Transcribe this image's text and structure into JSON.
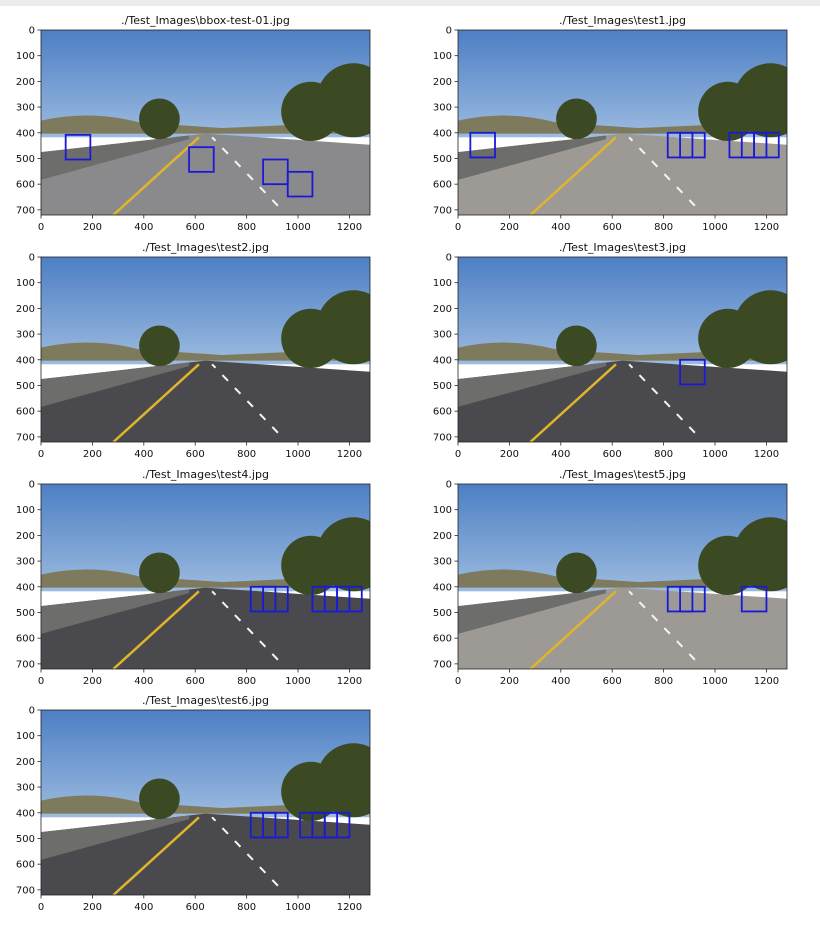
{
  "colors": {
    "box": "#1a1ad6",
    "axis": "#222222",
    "sky": "#5d8ccc",
    "road": "#4a4a4e",
    "lane_yellow": "#e0b52c"
  },
  "chart_data": [
    {
      "type": "image",
      "title": "./Test_Images\\bbox-test-01.jpg",
      "xlim": [
        0,
        1280
      ],
      "ylim": [
        720,
        0
      ],
      "xticks": [
        0,
        200,
        400,
        600,
        800,
        1000,
        1200
      ],
      "yticks": [
        0,
        100,
        200,
        300,
        400,
        500,
        600,
        700
      ],
      "scene": "freeway",
      "boxes": [
        {
          "x0": 96,
          "y0": 408,
          "x1": 192,
          "y1": 504
        },
        {
          "x0": 576,
          "y0": 456,
          "x1": 672,
          "y1": 552
        },
        {
          "x0": 864,
          "y0": 504,
          "x1": 960,
          "y1": 600
        },
        {
          "x0": 960,
          "y0": 552,
          "x1": 1056,
          "y1": 648
        }
      ]
    },
    {
      "type": "image",
      "title": "./Test_Images\\test1.jpg",
      "xlim": [
        0,
        1280
      ],
      "ylim": [
        720,
        0
      ],
      "xticks": [
        0,
        200,
        400,
        600,
        800,
        1000,
        1200
      ],
      "yticks": [
        0,
        100,
        200,
        300,
        400,
        500,
        600,
        700
      ],
      "scene": "bright",
      "boxes": [
        {
          "x0": 48,
          "y0": 400,
          "x1": 144,
          "y1": 496
        },
        {
          "x0": 816,
          "y0": 400,
          "x1": 912,
          "y1": 496
        },
        {
          "x0": 864,
          "y0": 400,
          "x1": 960,
          "y1": 496
        },
        {
          "x0": 1056,
          "y0": 400,
          "x1": 1152,
          "y1": 496
        },
        {
          "x0": 1104,
          "y0": 400,
          "x1": 1200,
          "y1": 496
        },
        {
          "x0": 1152,
          "y0": 400,
          "x1": 1248,
          "y1": 496
        }
      ]
    },
    {
      "type": "image",
      "title": "./Test_Images\\test2.jpg",
      "xlim": [
        0,
        1280
      ],
      "ylim": [
        720,
        0
      ],
      "xticks": [
        0,
        200,
        400,
        600,
        800,
        1000,
        1200
      ],
      "yticks": [
        0,
        100,
        200,
        300,
        400,
        500,
        600,
        700
      ],
      "scene": "dark",
      "boxes": []
    },
    {
      "type": "image",
      "title": "./Test_Images\\test3.jpg",
      "xlim": [
        0,
        1280
      ],
      "ylim": [
        720,
        0
      ],
      "xticks": [
        0,
        200,
        400,
        600,
        800,
        1000,
        1200
      ],
      "yticks": [
        0,
        100,
        200,
        300,
        400,
        500,
        600,
        700
      ],
      "scene": "dark",
      "boxes": [
        {
          "x0": 864,
          "y0": 400,
          "x1": 960,
          "y1": 496
        }
      ]
    },
    {
      "type": "image",
      "title": "./Test_Images\\test4.jpg",
      "xlim": [
        0,
        1280
      ],
      "ylim": [
        720,
        0
      ],
      "xticks": [
        0,
        200,
        400,
        600,
        800,
        1000,
        1200
      ],
      "yticks": [
        0,
        100,
        200,
        300,
        400,
        500,
        600,
        700
      ],
      "scene": "dark",
      "boxes": [
        {
          "x0": 816,
          "y0": 400,
          "x1": 912,
          "y1": 496
        },
        {
          "x0": 864,
          "y0": 400,
          "x1": 960,
          "y1": 496
        },
        {
          "x0": 1056,
          "y0": 400,
          "x1": 1152,
          "y1": 496
        },
        {
          "x0": 1104,
          "y0": 400,
          "x1": 1200,
          "y1": 496
        },
        {
          "x0": 1152,
          "y0": 400,
          "x1": 1248,
          "y1": 496
        }
      ]
    },
    {
      "type": "image",
      "title": "./Test_Images\\test5.jpg",
      "xlim": [
        0,
        1280
      ],
      "ylim": [
        720,
        0
      ],
      "xticks": [
        0,
        200,
        400,
        600,
        800,
        1000,
        1200
      ],
      "yticks": [
        0,
        100,
        200,
        300,
        400,
        500,
        600,
        700
      ],
      "scene": "bright",
      "boxes": [
        {
          "x0": 816,
          "y0": 400,
          "x1": 912,
          "y1": 496
        },
        {
          "x0": 864,
          "y0": 400,
          "x1": 960,
          "y1": 496
        },
        {
          "x0": 1104,
          "y0": 400,
          "x1": 1200,
          "y1": 496
        }
      ]
    },
    {
      "type": "image",
      "title": "./Test_Images\\test6.jpg",
      "xlim": [
        0,
        1280
      ],
      "ylim": [
        720,
        0
      ],
      "xticks": [
        0,
        200,
        400,
        600,
        800,
        1000,
        1200
      ],
      "yticks": [
        0,
        100,
        200,
        300,
        400,
        500,
        600,
        700
      ],
      "scene": "dark",
      "boxes": [
        {
          "x0": 816,
          "y0": 400,
          "x1": 912,
          "y1": 496
        },
        {
          "x0": 864,
          "y0": 400,
          "x1": 960,
          "y1": 496
        },
        {
          "x0": 1008,
          "y0": 400,
          "x1": 1104,
          "y1": 496
        },
        {
          "x0": 1056,
          "y0": 400,
          "x1": 1152,
          "y1": 496
        },
        {
          "x0": 1104,
          "y0": 400,
          "x1": 1200,
          "y1": 496
        }
      ]
    }
  ]
}
